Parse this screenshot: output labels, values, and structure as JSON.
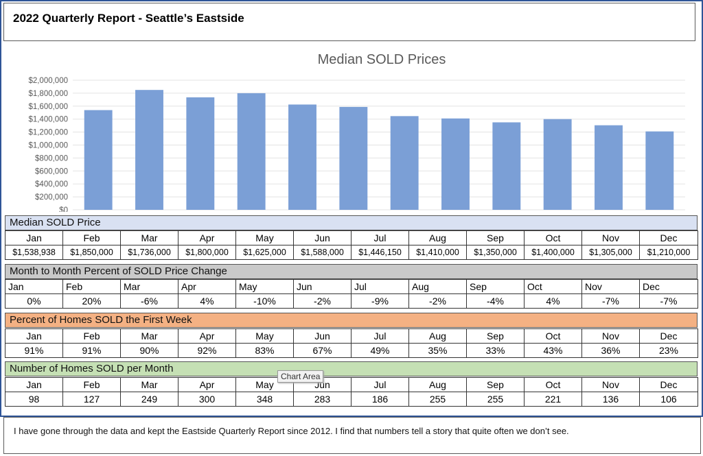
{
  "header": {
    "title": "2022 Quarterly Report  -  Seattle’s Eastside"
  },
  "chart_data": {
    "type": "bar",
    "title": "Median SOLD Prices",
    "categories": [
      "Jan",
      "Feb",
      "Mar",
      "Apr",
      "May",
      "Jun",
      "Jul",
      "Aug",
      "Sep",
      "Oct",
      "Nov",
      "Dec"
    ],
    "values": [
      1538938,
      1850000,
      1736000,
      1800000,
      1625000,
      1588000,
      1446150,
      1410000,
      1350000,
      1400000,
      1305000,
      1210000
    ],
    "y_ticks": [
      "$0",
      "$200,000",
      "$400,000",
      "$600,000",
      "$800,000",
      "$1,000,000",
      "$1,200,000",
      "$1,400,000",
      "$1,600,000",
      "$1,800,000",
      "$2,000,000"
    ],
    "ylim": [
      0,
      2000000
    ],
    "grid": true,
    "bar_color": "#7b9fd6"
  },
  "months": [
    "Jan",
    "Feb",
    "Mar",
    "Apr",
    "May",
    "Jun",
    "Jul",
    "Aug",
    "Sep",
    "Oct",
    "Nov",
    "Dec"
  ],
  "price_table": {
    "title": "Median SOLD Price",
    "values": [
      "$1,538,938",
      "$1,850,000",
      "$1,736,000",
      "$1,800,000",
      "$1,625,000",
      "$1,588,000",
      "$1,446,150",
      "$1,410,000",
      "$1,350,000",
      "$1,400,000",
      "$1,305,000",
      "$1,210,000"
    ],
    "color": "#d9e1f2"
  },
  "change_table": {
    "title": "Month to Month Percent of SOLD Price Change",
    "values": [
      "0%",
      "20%",
      "-6%",
      "4%",
      "-10%",
      "-2%",
      "-9%",
      "-2%",
      "-4%",
      "4%",
      "-7%",
      "-7%"
    ],
    "color": "#c9c9c9"
  },
  "first_week_table": {
    "title": "Percent of Homes SOLD the First Week",
    "values": [
      "91%",
      "91%",
      "90%",
      "92%",
      "83%",
      "67%",
      "49%",
      "35%",
      "33%",
      "43%",
      "36%",
      "23%"
    ],
    "color": "#f4b183"
  },
  "count_table": {
    "title": "Number of Homes SOLD per Month",
    "values": [
      "98",
      "127",
      "249",
      "300",
      "348",
      "283",
      "186",
      "255",
      "255",
      "221",
      "136",
      "106"
    ],
    "color": "#c5e0b4"
  },
  "tooltip": "Chart Area",
  "footer": {
    "note": "I have gone through the data and kept the Eastside Quarterly Report since 2012. I find that numbers tell a story that quite often we don’t see."
  }
}
